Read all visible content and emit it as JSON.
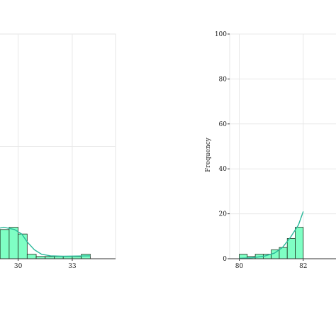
{
  "chart_data": [
    {
      "type": "bar",
      "title": "",
      "xlabel": "",
      "ylabel": "",
      "xlim": [
        28.6,
        35.4
      ],
      "ylim": [
        0,
        100
      ],
      "grid": true,
      "x_ticks": [
        {
          "value": 30,
          "label": "30"
        },
        {
          "value": 33,
          "label": "33"
        }
      ],
      "y_ticks": [],
      "bar_color": "#7fffc4",
      "bar_edge": "#1f2f1f",
      "curve_color": "#2ab89a",
      "bins": [
        {
          "x0": 29.0,
          "x1": 29.5,
          "count": 13
        },
        {
          "x0": 29.5,
          "x1": 30.0,
          "count": 14
        },
        {
          "x0": 30.0,
          "x1": 30.5,
          "count": 11
        },
        {
          "x0": 30.5,
          "x1": 31.0,
          "count": 2
        },
        {
          "x0": 31.0,
          "x1": 31.5,
          "count": 1
        },
        {
          "x0": 31.5,
          "x1": 32.0,
          "count": 1
        },
        {
          "x0": 32.0,
          "x1": 32.5,
          "count": 1
        },
        {
          "x0": 32.5,
          "x1": 33.0,
          "count": 1
        },
        {
          "x0": 33.0,
          "x1": 33.5,
          "count": 1
        },
        {
          "x0": 33.5,
          "x1": 34.0,
          "count": 2
        }
      ],
      "density": [
        [
          28.6,
          13
        ],
        [
          29.2,
          14
        ],
        [
          29.8,
          13
        ],
        [
          30.2,
          11
        ],
        [
          30.5,
          7.5
        ],
        [
          30.9,
          4
        ],
        [
          31.3,
          2
        ],
        [
          31.8,
          1.3
        ],
        [
          32.5,
          1.1
        ],
        [
          33.3,
          1.2
        ],
        [
          34.0,
          1.3
        ]
      ]
    },
    {
      "type": "bar",
      "title": "",
      "xlabel": "",
      "ylabel": "Frequency",
      "xlim": [
        79.7,
        83.6
      ],
      "ylim": [
        0,
        100
      ],
      "grid": true,
      "x_ticks": [
        {
          "value": 80,
          "label": "80"
        },
        {
          "value": 82,
          "label": "82"
        }
      ],
      "y_ticks": [
        {
          "value": 0,
          "label": "0"
        },
        {
          "value": 20,
          "label": "20"
        },
        {
          "value": 40,
          "label": "40"
        },
        {
          "value": 60,
          "label": "60"
        },
        {
          "value": 80,
          "label": "80"
        },
        {
          "value": 100,
          "label": "100"
        }
      ],
      "bar_color": "#7fffc4",
      "bar_edge": "#1f2f1f",
      "curve_color": "#2ab89a",
      "bins": [
        {
          "x0": 80.0,
          "x1": 80.25,
          "count": 2
        },
        {
          "x0": 80.25,
          "x1": 80.5,
          "count": 1
        },
        {
          "x0": 80.5,
          "x1": 80.75,
          "count": 2
        },
        {
          "x0": 80.75,
          "x1": 81.0,
          "count": 2
        },
        {
          "x0": 81.0,
          "x1": 81.25,
          "count": 4
        },
        {
          "x0": 81.25,
          "x1": 81.5,
          "count": 5
        },
        {
          "x0": 81.5,
          "x1": 81.75,
          "count": 9
        },
        {
          "x0": 81.75,
          "x1": 82.0,
          "count": 14
        }
      ],
      "density": [
        [
          80.0,
          0.2
        ],
        [
          80.4,
          0.4
        ],
        [
          80.8,
          1.2
        ],
        [
          81.1,
          2.5
        ],
        [
          81.35,
          5
        ],
        [
          81.6,
          9.5
        ],
        [
          81.85,
          15
        ],
        [
          82.0,
          21
        ]
      ]
    }
  ]
}
